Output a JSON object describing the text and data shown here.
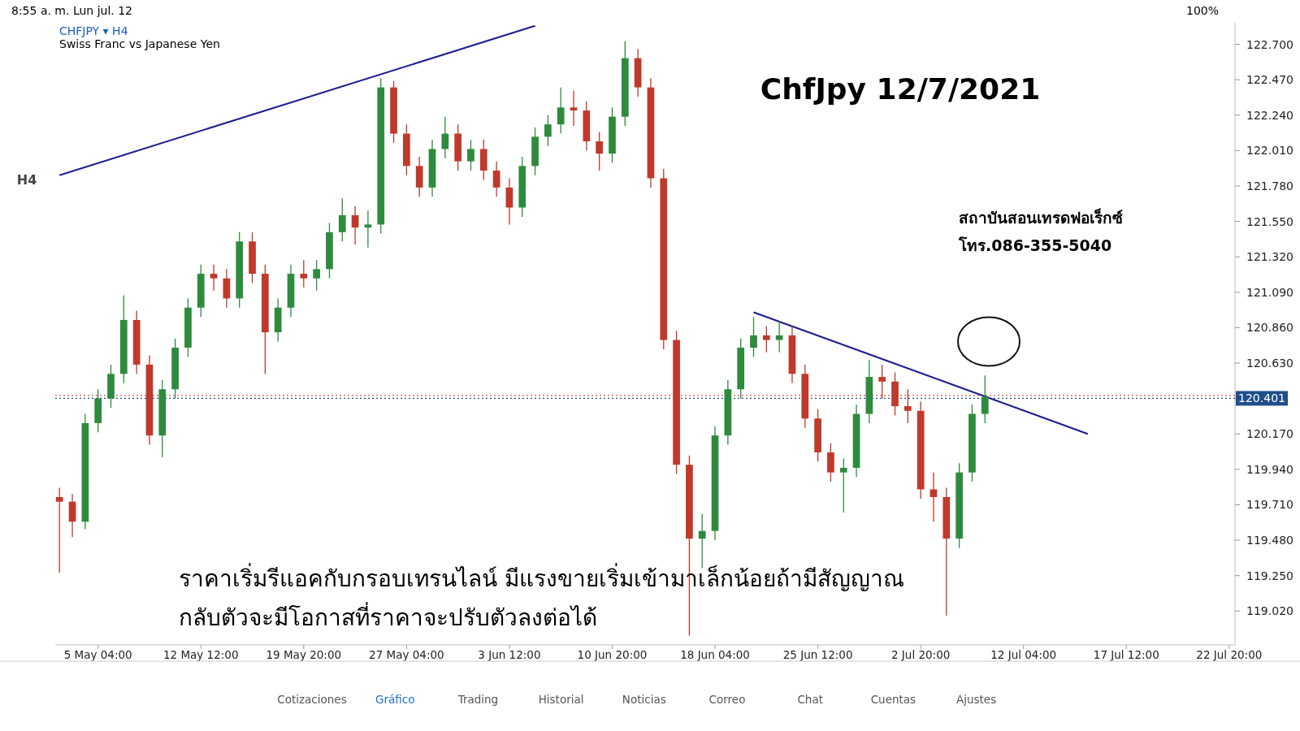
{
  "chart_data": {
    "type": "candlestick",
    "title": "ChfJpy 12/7/2021",
    "annotations": [
      "CHFJPY ▾ H4",
      "Swiss Franc vs Japanese Yen",
      "ราคาเริ่มรีแอคกับกรอบเทรนไลน์ มีแรงขายเริ่มเข้ามาเล็กน้อยถ้ามีสัญญาณ",
      "กลับตัวจะมีโอกาสที่ราคาจะปรับตัวลงต่อได้",
      "สถาบันสอนเทรดฟอเร็กซ์",
      "โทร.086-355-5040",
      "8:55 a. m.   Lun jul. 12",
      "100%",
      "H4",
      "Cotizaciones",
      "Gráfico",
      "Trading",
      "Historial",
      "Noticias",
      "Correo",
      "Chat",
      "Cuentas",
      "Ajustes"
    ],
    "categories": [
      null,
      null,
      null,
      "5 May 04:00",
      null,
      null,
      null,
      null,
      null,
      null,
      null,
      "12 May 12:00",
      null,
      null,
      null,
      null,
      null,
      null,
      null,
      "19 May 20:00",
      null,
      null,
      null,
      null,
      null,
      null,
      null,
      "27 May 04:00",
      null,
      null,
      null,
      null,
      null,
      null,
      null,
      "3 Jun 12:00",
      null,
      null,
      null,
      null,
      null,
      null,
      null,
      "10 Jun 20:00",
      null,
      null,
      null,
      null,
      null,
      null,
      null,
      "18 Jun 04:00",
      null,
      null,
      null,
      null,
      null,
      null,
      null,
      "25 Jun 12:00",
      null,
      null,
      null,
      null,
      null,
      null,
      null,
      "2 Jul 20:00",
      null,
      null,
      null,
      null,
      null,
      null,
      null,
      "12 Jul 04:00",
      null,
      null,
      null,
      null,
      null,
      null,
      null,
      "17 Jul 12:00",
      null,
      null,
      null,
      null,
      null,
      null,
      null,
      "22 Jul 20:00"
    ],
    "ohlc": [
      [
        119.76,
        119.82,
        119.27,
        119.73
      ],
      [
        119.73,
        119.78,
        119.5,
        119.6
      ],
      [
        119.6,
        120.3,
        119.55,
        120.24
      ],
      [
        120.24,
        120.46,
        120.18,
        120.4
      ],
      [
        120.4,
        120.62,
        120.34,
        120.56
      ],
      [
        120.56,
        121.07,
        120.5,
        120.91
      ],
      [
        120.91,
        120.97,
        120.56,
        120.62
      ],
      [
        120.62,
        120.68,
        120.1,
        120.16
      ],
      [
        120.16,
        120.52,
        120.02,
        120.46
      ],
      [
        120.46,
        120.79,
        120.4,
        120.73
      ],
      [
        120.73,
        121.05,
        120.67,
        120.99
      ],
      [
        120.99,
        121.27,
        120.93,
        121.21
      ],
      [
        121.21,
        121.27,
        121.1,
        121.18
      ],
      [
        121.18,
        121.24,
        120.99,
        121.05
      ],
      [
        121.05,
        121.48,
        120.99,
        121.42
      ],
      [
        121.42,
        121.48,
        121.15,
        121.21
      ],
      [
        121.21,
        121.27,
        120.56,
        120.83
      ],
      [
        120.83,
        121.05,
        120.77,
        120.99
      ],
      [
        120.99,
        121.27,
        120.93,
        121.21
      ],
      [
        121.21,
        121.3,
        121.12,
        121.18
      ],
      [
        121.18,
        121.3,
        121.1,
        121.24
      ],
      [
        121.24,
        121.54,
        121.18,
        121.48
      ],
      [
        121.48,
        121.7,
        121.42,
        121.59
      ],
      [
        121.59,
        121.65,
        121.4,
        121.51
      ],
      [
        121.51,
        121.62,
        121.38,
        121.53
      ],
      [
        121.53,
        122.48,
        121.47,
        122.42
      ],
      [
        122.42,
        122.46,
        122.06,
        122.12
      ],
      [
        122.12,
        122.18,
        121.85,
        121.91
      ],
      [
        121.91,
        121.97,
        121.71,
        121.77
      ],
      [
        121.77,
        122.08,
        121.71,
        122.02
      ],
      [
        122.02,
        122.23,
        121.96,
        122.12
      ],
      [
        122.12,
        122.18,
        121.88,
        121.94
      ],
      [
        121.94,
        122.08,
        121.88,
        122.02
      ],
      [
        122.02,
        122.08,
        121.82,
        121.88
      ],
      [
        121.88,
        121.94,
        121.71,
        121.77
      ],
      [
        121.77,
        121.83,
        121.53,
        121.64
      ],
      [
        121.64,
        121.97,
        121.58,
        121.91
      ],
      [
        121.91,
        122.16,
        121.85,
        122.1
      ],
      [
        122.1,
        122.24,
        122.04,
        122.18
      ],
      [
        122.18,
        122.42,
        122.12,
        122.29
      ],
      [
        122.29,
        122.4,
        122.17,
        122.27
      ],
      [
        122.27,
        122.33,
        122.01,
        122.07
      ],
      [
        122.07,
        122.13,
        121.88,
        121.99
      ],
      [
        121.99,
        122.29,
        121.93,
        122.23
      ],
      [
        122.23,
        122.72,
        122.17,
        122.61
      ],
      [
        122.61,
        122.67,
        122.36,
        122.42
      ],
      [
        122.42,
        122.48,
        121.77,
        121.83
      ],
      [
        121.83,
        121.89,
        120.72,
        120.78
      ],
      [
        120.78,
        120.84,
        119.91,
        119.97
      ],
      [
        119.97,
        120.03,
        118.86,
        119.49
      ],
      [
        119.49,
        119.65,
        119.3,
        119.54
      ],
      [
        119.54,
        120.22,
        119.48,
        120.16
      ],
      [
        120.16,
        120.52,
        120.1,
        120.46
      ],
      [
        120.46,
        120.79,
        120.4,
        120.73
      ],
      [
        120.73,
        120.93,
        120.67,
        120.81
      ],
      [
        120.81,
        120.87,
        120.7,
        120.78
      ],
      [
        120.78,
        120.9,
        120.7,
        120.81
      ],
      [
        120.81,
        120.87,
        120.5,
        120.56
      ],
      [
        120.56,
        120.62,
        120.21,
        120.27
      ],
      [
        120.27,
        120.33,
        119.99,
        120.05
      ],
      [
        120.05,
        120.11,
        119.86,
        119.92
      ],
      [
        119.92,
        120.01,
        119.66,
        119.95
      ],
      [
        119.95,
        120.36,
        119.89,
        120.3
      ],
      [
        120.3,
        120.65,
        120.24,
        120.54
      ],
      [
        120.54,
        120.62,
        120.4,
        120.51
      ],
      [
        120.51,
        120.57,
        120.29,
        120.35
      ],
      [
        120.35,
        120.46,
        120.24,
        120.32
      ],
      [
        120.32,
        120.38,
        119.75,
        119.81
      ],
      [
        119.81,
        119.92,
        119.6,
        119.76
      ],
      [
        119.76,
        119.82,
        118.99,
        119.49
      ],
      [
        119.49,
        119.98,
        119.43,
        119.92
      ],
      [
        119.92,
        120.36,
        119.86,
        120.3
      ],
      [
        120.3,
        120.55,
        120.24,
        120.41
      ],
      null,
      null,
      null,
      null,
      null,
      null,
      null,
      null,
      null,
      null,
      null,
      null,
      null,
      null,
      null,
      null,
      null,
      null,
      null
    ],
    "colors": [
      "#c0392b",
      "#c0392b",
      "#2e8b3e",
      "#2e8b3e",
      "#2e8b3e",
      "#2e8b3e",
      "#c0392b",
      "#c0392b",
      "#2e8b3e",
      "#2e8b3e",
      "#2e8b3e",
      "#2e8b3e",
      "#c0392b",
      "#c0392b",
      "#2e8b3e",
      "#c0392b",
      "#c0392b",
      "#2e8b3e",
      "#2e8b3e",
      "#c0392b",
      "#2e8b3e",
      "#2e8b3e",
      "#2e8b3e",
      "#c0392b",
      "#2e8b3e",
      "#2e8b3e",
      "#c0392b",
      "#c0392b",
      "#c0392b",
      "#2e8b3e",
      "#2e8b3e",
      "#c0392b",
      "#2e8b3e",
      "#c0392b",
      "#c0392b",
      "#c0392b",
      "#2e8b3e",
      "#2e8b3e",
      "#2e8b3e",
      "#2e8b3e",
      "#c0392b",
      "#c0392b",
      "#c0392b",
      "#2e8b3e",
      "#2e8b3e",
      "#c0392b",
      "#c0392b",
      "#c0392b",
      "#c0392b",
      "#c0392b",
      "#2e8b3e",
      "#2e8b3e",
      "#2e8b3e",
      "#2e8b3e",
      "#2e8b3e",
      "#c0392b",
      "#2e8b3e",
      "#c0392b",
      "#c0392b",
      "#c0392b",
      "#c0392b",
      "#2e8b3e",
      "#2e8b3e",
      "#2e8b3e",
      "#c0392b",
      "#c0392b",
      "#c0392b",
      "#c0392b",
      "#c0392b",
      "#c0392b",
      "#2e8b3e",
      "#2e8b3e",
      "#2e8b3e",
      null,
      null,
      null,
      null,
      null,
      null,
      null,
      null,
      null,
      null,
      null,
      null,
      null,
      null,
      null,
      null,
      null,
      null,
      null
    ],
    "series": [
      {
        "type": "line",
        "color": "#1c1c8f",
        "values": [
          121.85,
          null,
          null,
          null,
          null,
          null,
          null,
          null,
          null,
          null,
          null,
          null,
          null,
          null,
          null,
          null,
          null,
          null,
          null,
          null,
          null,
          null,
          null,
          null,
          null,
          null,
          null,
          null,
          null,
          null,
          null,
          null,
          null,
          null,
          null,
          null,
          null,
          122.82,
          null,
          null,
          null,
          null,
          null,
          null,
          null,
          null,
          null,
          null,
          null,
          null,
          null,
          null,
          null,
          null,
          null,
          null,
          null,
          null,
          null,
          null,
          null,
          null,
          null,
          null,
          null,
          null,
          null,
          null,
          null,
          null,
          null,
          null,
          null,
          null,
          null,
          null,
          null,
          null,
          null,
          null,
          null,
          null,
          null,
          null,
          null,
          null,
          null,
          null,
          null,
          null,
          null,
          null
        ]
      },
      {
        "type": "line",
        "color": "#1c1c8f",
        "values": [
          null,
          null,
          null,
          null,
          null,
          null,
          null,
          null,
          null,
          null,
          null,
          null,
          null,
          null,
          null,
          null,
          null,
          null,
          null,
          null,
          null,
          null,
          null,
          null,
          null,
          null,
          null,
          null,
          null,
          null,
          null,
          null,
          null,
          null,
          null,
          null,
          null,
          null,
          null,
          null,
          null,
          null,
          null,
          null,
          null,
          null,
          null,
          null,
          null,
          null,
          null,
          null,
          null,
          null,
          120.96,
          null,
          null,
          null,
          null,
          null,
          null,
          null,
          null,
          null,
          null,
          null,
          null,
          null,
          null,
          null,
          null,
          null,
          null,
          null,
          null,
          null,
          null,
          null,
          null,
          null,
          120.17,
          null,
          null,
          null,
          null,
          null,
          null,
          null,
          null,
          null,
          null,
          null
        ]
      }
    ],
    "ref_lines": [
      {
        "axis": "y",
        "value": 120.42,
        "color": "#d9534f",
        "line_style": "dotted"
      },
      {
        "axis": "y",
        "value": 120.401,
        "label": "120.401",
        "color": "#1f4e8c",
        "line_style": "dotted"
      }
    ],
    "ylim": [
      118.8,
      122.84
    ],
    "yticks": [
      {
        "value": 119.02,
        "label": "119.020"
      },
      {
        "value": 119.25,
        "label": "119.250"
      },
      {
        "value": 119.48,
        "label": "119.480"
      },
      {
        "value": 119.71,
        "label": "119.710"
      },
      {
        "value": 119.94,
        "label": "119.940"
      },
      {
        "value": 120.17,
        "label": "120.170"
      },
      {
        "value": 120.4,
        "label": null
      },
      {
        "value": 120.63,
        "label": "120.630"
      },
      {
        "value": 120.86,
        "label": "120.860"
      },
      {
        "value": 121.09,
        "label": "121.090"
      },
      {
        "value": 121.32,
        "label": "121.320"
      },
      {
        "value": 121.55,
        "label": "121.550"
      },
      {
        "value": 121.78,
        "label": "121.780"
      },
      {
        "value": 122.01,
        "label": "122.010"
      },
      {
        "value": 122.24,
        "label": "122.240"
      },
      {
        "value": 122.47,
        "label": "122.470"
      },
      {
        "value": 122.7,
        "label": "122.700"
      }
    ],
    "grid": false
  }
}
